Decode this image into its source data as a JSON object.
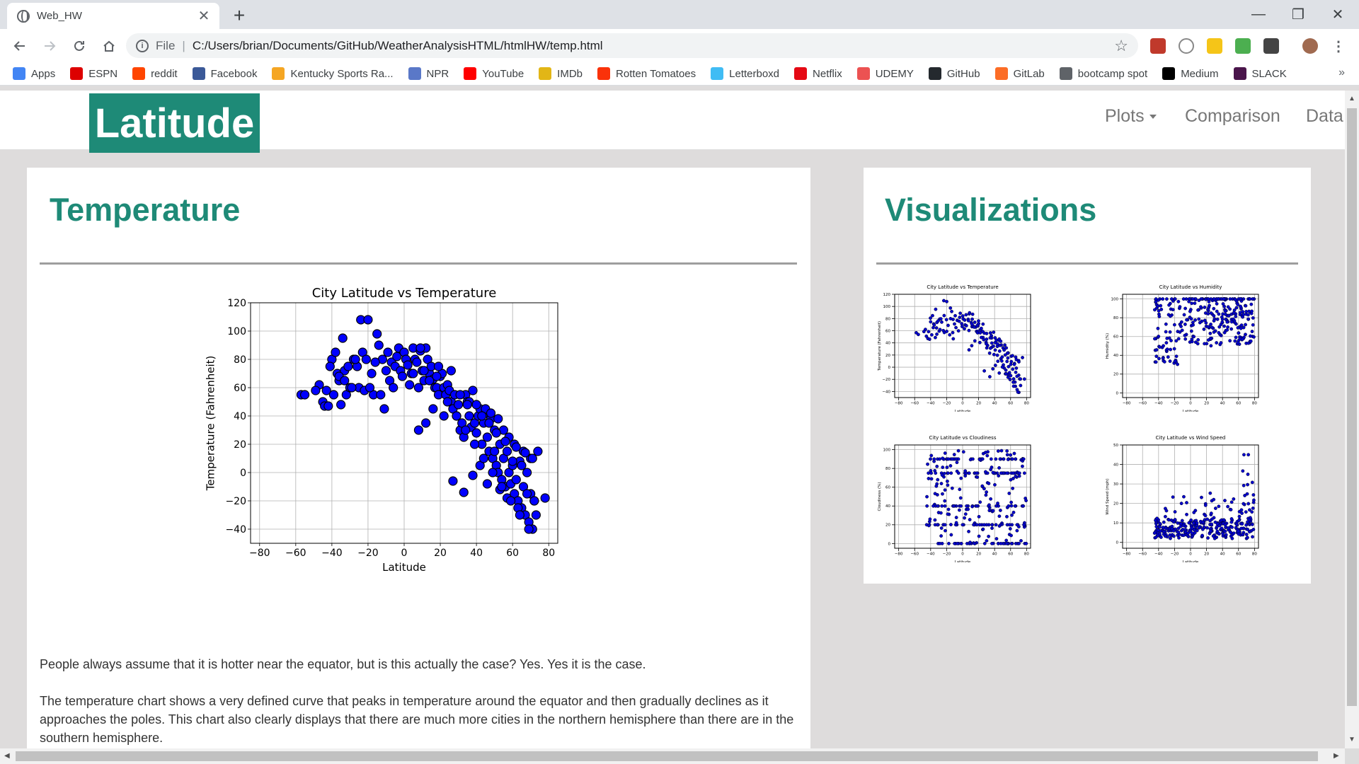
{
  "browser": {
    "tab_title": "Web_HW",
    "tab_close": "✕",
    "new_tab": "+",
    "scheme": "File",
    "separator": "|",
    "url": "C:/Users/brian/Documents/GitHub/WeatherAnalysisHTML/htmlHW/temp.html",
    "window_controls": [
      "—",
      "❐",
      "✕"
    ],
    "bookmarks": [
      {
        "label": "Apps",
        "icon": "apps-grid-icon",
        "color": "#4285f4"
      },
      {
        "label": "ESPN",
        "icon": "espn-icon",
        "color": "#d00"
      },
      {
        "label": "reddit",
        "icon": "reddit-icon",
        "color": "#ff4500"
      },
      {
        "label": "Facebook",
        "icon": "facebook-icon",
        "color": "#3b5998"
      },
      {
        "label": "Kentucky Sports Ra...",
        "icon": "kentucky-sports-icon",
        "color": "#f5a623"
      },
      {
        "label": "NPR",
        "icon": "npr-icon",
        "color": "#5a78c8"
      },
      {
        "label": "YouTube",
        "icon": "youtube-icon",
        "color": "#ff0000"
      },
      {
        "label": "IMDb",
        "icon": "imdb-icon",
        "color": "#e2b616"
      },
      {
        "label": "Rotten Tomatoes",
        "icon": "rotten-tomatoes-icon",
        "color": "#fa320a"
      },
      {
        "label": "Letterboxd",
        "icon": "letterboxd-icon",
        "color": "#40bcf4"
      },
      {
        "label": "Netflix",
        "icon": "netflix-icon",
        "color": "#e50914"
      },
      {
        "label": "UDEMY",
        "icon": "udemy-icon",
        "color": "#ec5252"
      },
      {
        "label": "GitHub",
        "icon": "github-icon",
        "color": "#24292e"
      },
      {
        "label": "GitLab",
        "icon": "gitlab-icon",
        "color": "#fc6d26"
      },
      {
        "label": "bootcamp spot",
        "icon": "globe-icon",
        "color": "#5f6368"
      },
      {
        "label": "Medium",
        "icon": "medium-icon",
        "color": "#000000"
      },
      {
        "label": "SLACK",
        "icon": "slack-icon",
        "color": "#4a154b"
      }
    ],
    "bookmarks_more": "»"
  },
  "navbar": {
    "brand": "Latitude",
    "links": [
      {
        "label": "Plots",
        "dropdown": true
      },
      {
        "label": "Comparison",
        "dropdown": false
      },
      {
        "label": "Data",
        "dropdown": false
      }
    ]
  },
  "main": {
    "title": "Temperature",
    "paragraphs": [
      "People always assume that it is hotter near the equator, but is this actually the case? Yes. Yes it is the case.",
      "The temperature chart shows a very defined curve that peaks in temperature around the equator and then gradually declines as it approaches the poles. This chart also clearly displays that there are much more cities in the northern hemisphere than there are in the southern hemisphere."
    ]
  },
  "sidebar": {
    "title": "Visualizations"
  },
  "chart_data": [
    {
      "type": "scatter",
      "title": "City Latitude vs Temperature",
      "xlabel": "Latitude",
      "ylabel": "Temperature (Fahrenheit)",
      "xlim": [
        -85,
        85
      ],
      "ylim": [
        -50,
        120
      ],
      "xticks": [
        -80,
        -60,
        -40,
        -20,
        0,
        20,
        40,
        60,
        80
      ],
      "yticks": [
        -40,
        -20,
        0,
        20,
        40,
        60,
        80,
        100,
        120
      ],
      "grid": true,
      "point_color": "#0000ff",
      "x": [
        -57,
        -55,
        -47,
        -45,
        -44,
        -43,
        -42,
        -40,
        -39,
        -38,
        -37,
        -36,
        -35,
        -34,
        -33,
        -32,
        -30,
        -28,
        -26,
        -25,
        -24,
        -22,
        -20,
        -18,
        -17,
        -15,
        -14,
        -12,
        -10,
        -9,
        -8,
        -7,
        -6,
        -5,
        -4,
        -3,
        -2,
        -1,
        0,
        1,
        2,
        3,
        4,
        5,
        6,
        7,
        8,
        9,
        10,
        11,
        12,
        13,
        14,
        15,
        16,
        17,
        18,
        19,
        20,
        21,
        22,
        23,
        24,
        25,
        26,
        27,
        28,
        29,
        30,
        31,
        32,
        33,
        34,
        35,
        36,
        37,
        38,
        39,
        40,
        41,
        42,
        43,
        44,
        45,
        46,
        47,
        48,
        49,
        50,
        51,
        52,
        53,
        54,
        55,
        56,
        57,
        58,
        59,
        60,
        61,
        62,
        63,
        64,
        65,
        66,
        67,
        68,
        69,
        70,
        71,
        72,
        73,
        -41,
        -31,
        -27,
        -19,
        -13,
        -11,
        8,
        12,
        16,
        22,
        27,
        33,
        38,
        42,
        46,
        50,
        53,
        57,
        60,
        63,
        65,
        68,
        70,
        72,
        -36,
        -29,
        -23,
        -16,
        5,
        9,
        14,
        19,
        24,
        29,
        34,
        39,
        44,
        49,
        54,
        59,
        64,
        69,
        45,
        48,
        52,
        55,
        58,
        61,
        66,
        71,
        74,
        78,
        36,
        40,
        43,
        47,
        51,
        56,
        62,
        67,
        31,
        35,
        26,
        18,
        11,
        -21,
        -33,
        -49
      ],
      "y": [
        55,
        55,
        62,
        50,
        47,
        58,
        47,
        80,
        55,
        85,
        70,
        65,
        48,
        95,
        72,
        55,
        60,
        80,
        75,
        60,
        108,
        58,
        108,
        70,
        55,
        98,
        90,
        80,
        72,
        85,
        65,
        78,
        60,
        75,
        82,
        88,
        72,
        68,
        85,
        80,
        76,
        62,
        70,
        88,
        80,
        78,
        60,
        86,
        72,
        65,
        88,
        80,
        70,
        75,
        66,
        60,
        60,
        55,
        68,
        70,
        60,
        55,
        62,
        58,
        50,
        45,
        55,
        40,
        48,
        30,
        35,
        25,
        55,
        50,
        40,
        32,
        58,
        35,
        28,
        40,
        45,
        20,
        35,
        42,
        25,
        15,
        38,
        10,
        30,
        5,
        0,
        20,
        -5,
        10,
        -10,
        15,
        0,
        -8,
        5,
        -15,
        -5,
        -20,
        8,
        -25,
        -10,
        -30,
        0,
        -35,
        -15,
        -40,
        -20,
        -30,
        75,
        75,
        80,
        60,
        55,
        45,
        30,
        35,
        45,
        40,
        -6,
        -14,
        -2,
        5,
        -8,
        15,
        -12,
        -18,
        8,
        -25,
        5,
        -15,
        10,
        -20,
        68,
        60,
        85,
        78,
        70,
        88,
        65,
        75,
        50,
        40,
        30,
        20,
        10,
        0,
        -10,
        -20,
        -30,
        -40,
        45,
        42,
        38,
        30,
        25,
        20,
        15,
        10,
        15,
        -18,
        50,
        48,
        40,
        35,
        28,
        22,
        18,
        14,
        55,
        48,
        72,
        68,
        72,
        80,
        65,
        58
      ]
    },
    {
      "type": "scatter",
      "title": "City Latitude vs Temperature",
      "xlabel": "Latitude",
      "ylabel": "Temperature (Fahrenheit)",
      "xlim": [
        -85,
        85
      ],
      "ylim": [
        -50,
        120
      ],
      "xticks": [
        -80,
        -60,
        -40,
        -20,
        0,
        20,
        40,
        60,
        80
      ],
      "yticks": [
        -40,
        -20,
        0,
        20,
        40,
        60,
        80,
        100,
        120
      ]
    },
    {
      "type": "scatter",
      "title": "City Latitude vs Humidity",
      "xlabel": "Latitude",
      "ylabel": "Humidity (%)",
      "xlim": [
        -85,
        85
      ],
      "ylim": [
        -5,
        105
      ],
      "xticks": [
        -80,
        -60,
        -40,
        -20,
        0,
        20,
        40,
        60,
        80
      ],
      "yticks": [
        0,
        20,
        40,
        60,
        80,
        100
      ]
    },
    {
      "type": "scatter",
      "title": "City Latitude vs Cloudiness",
      "xlabel": "Latitude",
      "ylabel": "Cloudiness (%)",
      "xlim": [
        -85,
        85
      ],
      "ylim": [
        -5,
        105
      ],
      "xticks": [
        -80,
        -60,
        -40,
        -20,
        0,
        20,
        40,
        60,
        80
      ],
      "yticks": [
        0,
        20,
        40,
        60,
        80,
        100
      ]
    },
    {
      "type": "scatter",
      "title": "City Latitude vs Wind Speed",
      "xlabel": "Latitude",
      "ylabel": "Wind Speed (mph)",
      "xlim": [
        -85,
        85
      ],
      "ylim": [
        -3,
        50
      ],
      "xticks": [
        -80,
        -60,
        -40,
        -20,
        0,
        20,
        40,
        60,
        80
      ],
      "yticks": [
        0,
        10,
        20,
        30,
        40,
        50
      ]
    }
  ]
}
